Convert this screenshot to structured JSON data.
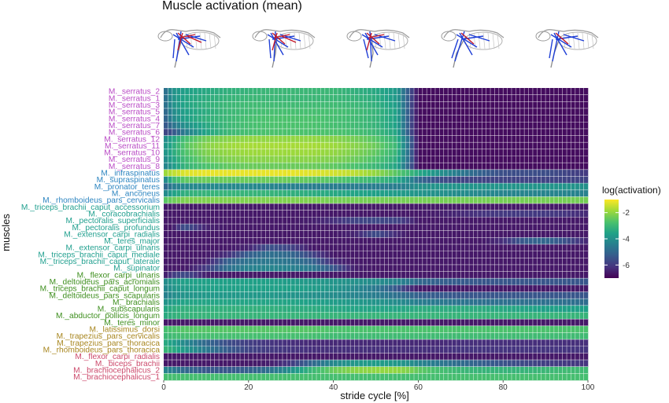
{
  "chart_data": {
    "type": "heatmap",
    "title": "Muscle activation (mean)",
    "xlabel": "stride cycle [%]",
    "ylabel": "muscles",
    "xlim": [
      0,
      100
    ],
    "x_ticks": [
      "0",
      "20",
      "40",
      "60",
      "80",
      "100"
    ],
    "legend": {
      "title": "log(activation)",
      "ticks": [
        "-2",
        "-4",
        "-6"
      ],
      "range": [
        -7,
        -1
      ],
      "placement": "right"
    },
    "group_colors": {
      "serratus": "#b94bc5",
      "blue": "#2e86c1",
      "teal": "#21a08f",
      "green": "#3f8f1f",
      "brown": "#a8861f",
      "pink": "#cc4a6c"
    },
    "muscles": [
      {
        "name": "M._serratus_2",
        "group": "serratus"
      },
      {
        "name": "M._serratus_1",
        "group": "serratus"
      },
      {
        "name": "M._serratus_3",
        "group": "serratus"
      },
      {
        "name": "M._serratus_5",
        "group": "serratus"
      },
      {
        "name": "M._serratus_4",
        "group": "serratus"
      },
      {
        "name": "M._serratus_7",
        "group": "serratus"
      },
      {
        "name": "M._serratus_6",
        "group": "serratus"
      },
      {
        "name": "M._serratus_12",
        "group": "serratus"
      },
      {
        "name": "M._serratus_11",
        "group": "serratus"
      },
      {
        "name": "M._serratus_10",
        "group": "serratus"
      },
      {
        "name": "M._serratus_9",
        "group": "serratus"
      },
      {
        "name": "M._serratus_8",
        "group": "serratus"
      },
      {
        "name": "M._infraspinatus",
        "group": "blue"
      },
      {
        "name": "M._supraspinatus",
        "group": "blue"
      },
      {
        "name": "M._pronator_teres",
        "group": "blue"
      },
      {
        "name": "M._anconeus",
        "group": "blue"
      },
      {
        "name": "M._rhomboideus_pars_cervicalis",
        "group": "blue"
      },
      {
        "name": "M._triceps_brachii_caput_accessorium",
        "group": "teal"
      },
      {
        "name": "M._coracobrachialis",
        "group": "teal"
      },
      {
        "name": "M._pectoralis_superficialis",
        "group": "teal"
      },
      {
        "name": "M._pectoralis_profundus",
        "group": "teal"
      },
      {
        "name": "M._extensor_carpi_radialis",
        "group": "teal"
      },
      {
        "name": "M._teres_major",
        "group": "teal"
      },
      {
        "name": "M._extensor_carpi_ulnaris",
        "group": "teal"
      },
      {
        "name": "M._triceps_brachii_caput_mediale",
        "group": "teal"
      },
      {
        "name": "M._triceps_brachii_caput_laterale",
        "group": "teal"
      },
      {
        "name": "M._supinator",
        "group": "teal"
      },
      {
        "name": "M._flexor_carpi_ulnaris",
        "group": "green"
      },
      {
        "name": "M._deltoideus_pars_acromialis",
        "group": "green"
      },
      {
        "name": "M._triceps_brachii_caput_longum",
        "group": "green"
      },
      {
        "name": "M._deltoideus_pars_scapularis",
        "group": "green"
      },
      {
        "name": "M._brachialis",
        "group": "green"
      },
      {
        "name": "M._subscapularis",
        "group": "green"
      },
      {
        "name": "M._abductor_pollicis_longum",
        "group": "green"
      },
      {
        "name": "M._teres_minor",
        "group": "green"
      },
      {
        "name": "M._latissimus_dorsi",
        "group": "brown"
      },
      {
        "name": "M._trapezius_pars_cervicalis",
        "group": "brown"
      },
      {
        "name": "M._trapezius_pars_thoracica",
        "group": "brown"
      },
      {
        "name": "M._rhomboideus_pars_thoracica",
        "group": "brown"
      },
      {
        "name": "M._flexor_carpi_radialis",
        "group": "pink"
      },
      {
        "name": "M._biceps_brachii",
        "group": "pink"
      },
      {
        "name": "M._brachiocephalicus_2",
        "group": "pink"
      },
      {
        "name": "M._brachiocephalicus_1",
        "group": "pink"
      }
    ],
    "x_breakpoints": [
      0,
      2,
      5,
      10,
      15,
      20,
      25,
      30,
      35,
      40,
      45,
      50,
      55,
      58,
      60,
      65,
      70,
      75,
      80,
      85,
      90,
      95,
      100
    ],
    "activation_profiles": [
      [
        -5.0,
        -4.0,
        -3.6,
        -3.4,
        -3.2,
        -3.1,
        -3.0,
        -3.0,
        -3.0,
        -3.0,
        -3.2,
        -3.4,
        -3.8,
        -5.5,
        -6.8,
        -6.8,
        -6.8,
        -6.8,
        -6.8,
        -6.8,
        -6.8,
        -6.8,
        -6.8
      ],
      [
        -5.0,
        -4.0,
        -3.5,
        -3.3,
        -3.1,
        -3.0,
        -3.0,
        -3.0,
        -3.0,
        -3.0,
        -3.1,
        -3.3,
        -3.8,
        -5.5,
        -6.8,
        -6.8,
        -6.8,
        -6.8,
        -6.8,
        -6.8,
        -6.8,
        -6.8,
        -6.8
      ],
      [
        -5.0,
        -4.0,
        -3.5,
        -3.2,
        -3.0,
        -2.9,
        -2.9,
        -2.9,
        -2.9,
        -2.9,
        -3.0,
        -3.2,
        -3.7,
        -5.5,
        -6.8,
        -6.8,
        -6.8,
        -6.8,
        -6.8,
        -6.8,
        -6.8,
        -6.8,
        -6.8
      ],
      [
        -5.2,
        -4.2,
        -3.6,
        -3.3,
        -3.0,
        -2.9,
        -2.8,
        -2.8,
        -2.8,
        -2.8,
        -2.9,
        -3.1,
        -3.6,
        -5.5,
        -6.8,
        -6.8,
        -6.8,
        -6.8,
        -6.8,
        -6.8,
        -6.8,
        -6.8,
        -6.8
      ],
      [
        -5.3,
        -4.3,
        -3.6,
        -3.2,
        -3.0,
        -2.8,
        -2.7,
        -2.7,
        -2.7,
        -2.8,
        -2.9,
        -3.1,
        -3.6,
        -5.5,
        -6.8,
        -6.8,
        -6.8,
        -6.8,
        -6.8,
        -6.8,
        -6.8,
        -6.8,
        -6.8
      ],
      [
        -5.5,
        -4.8,
        -4.0,
        -3.4,
        -3.0,
        -2.8,
        -2.7,
        -2.7,
        -2.7,
        -2.8,
        -2.9,
        -3.1,
        -3.6,
        -5.5,
        -6.8,
        -6.8,
        -6.8,
        -6.8,
        -6.8,
        -6.8,
        -6.8,
        -6.8,
        -6.8
      ],
      [
        -5.8,
        -5.5,
        -4.5,
        -3.5,
        -3.0,
        -2.8,
        -2.7,
        -2.7,
        -2.7,
        -2.7,
        -2.8,
        -3.0,
        -3.5,
        -5.5,
        -6.8,
        -6.8,
        -6.8,
        -6.8,
        -6.8,
        -6.8,
        -6.8,
        -6.8,
        -6.8
      ],
      [
        -4.2,
        -3.6,
        -2.8,
        -2.3,
        -2.1,
        -2.0,
        -2.0,
        -2.0,
        -2.0,
        -2.1,
        -2.3,
        -2.6,
        -3.2,
        -5.0,
        -6.8,
        -6.8,
        -6.8,
        -6.8,
        -6.8,
        -6.8,
        -6.8,
        -6.8,
        -6.8
      ],
      [
        -4.0,
        -3.4,
        -2.6,
        -2.1,
        -1.9,
        -1.8,
        -1.8,
        -1.8,
        -1.8,
        -1.9,
        -2.1,
        -2.4,
        -3.0,
        -5.0,
        -6.8,
        -6.8,
        -6.8,
        -6.8,
        -6.8,
        -6.8,
        -6.8,
        -6.8,
        -6.8
      ],
      [
        -4.0,
        -3.4,
        -2.7,
        -2.2,
        -2.0,
        -1.9,
        -1.9,
        -1.9,
        -1.9,
        -2.0,
        -2.2,
        -2.5,
        -3.1,
        -5.0,
        -6.8,
        -6.8,
        -6.8,
        -6.8,
        -6.8,
        -6.8,
        -6.8,
        -6.8,
        -6.8
      ],
      [
        -4.2,
        -3.6,
        -2.9,
        -2.4,
        -2.2,
        -2.1,
        -2.1,
        -2.1,
        -2.1,
        -2.2,
        -2.4,
        -2.7,
        -3.3,
        -5.0,
        -6.8,
        -6.8,
        -6.8,
        -6.8,
        -6.8,
        -6.8,
        -6.8,
        -6.8,
        -6.8
      ],
      [
        -4.4,
        -3.8,
        -3.1,
        -2.7,
        -2.5,
        -2.4,
        -2.4,
        -2.4,
        -2.4,
        -2.5,
        -2.7,
        -3.0,
        -3.5,
        -5.2,
        -6.8,
        -6.8,
        -6.8,
        -6.8,
        -6.8,
        -6.8,
        -6.8,
        -6.8,
        -6.8
      ],
      [
        -2.0,
        -1.6,
        -1.3,
        -1.2,
        -1.2,
        -1.2,
        -1.2,
        -1.2,
        -1.3,
        -1.4,
        -1.6,
        -2.0,
        -2.6,
        -3.0,
        -3.4,
        -4.0,
        -4.6,
        -5.2,
        -5.6,
        -5.6,
        -5.6,
        -5.8,
        -6.0
      ],
      [
        -4.5,
        -3.0,
        -2.5,
        -2.4,
        -2.4,
        -2.4,
        -2.4,
        -2.4,
        -2.5,
        -2.6,
        -2.8,
        -3.0,
        -3.4,
        -4.2,
        -5.0,
        -5.6,
        -5.8,
        -5.8,
        -5.8,
        -5.8,
        -5.8,
        -5.8,
        -5.8
      ],
      [
        -5.2,
        -4.5,
        -4.2,
        -4.2,
        -4.2,
        -4.2,
        -4.3,
        -4.4,
        -4.5,
        -4.5,
        -4.5,
        -4.5,
        -4.5,
        -4.3,
        -4.0,
        -3.9,
        -3.9,
        -3.9,
        -3.9,
        -3.9,
        -3.9,
        -3.9,
        -4.0
      ],
      [
        -4.3,
        -3.6,
        -3.2,
        -3.1,
        -3.1,
        -3.1,
        -3.1,
        -3.2,
        -3.3,
        -3.4,
        -3.5,
        -3.6,
        -3.7,
        -3.8,
        -3.9,
        -4.0,
        -4.1,
        -4.2,
        -4.3,
        -4.3,
        -4.3,
        -4.3,
        -4.4
      ],
      [
        -2.6,
        -2.4,
        -2.2,
        -2.2,
        -2.2,
        -2.2,
        -2.2,
        -2.2,
        -2.2,
        -2.3,
        -2.3,
        -2.3,
        -2.3,
        -2.3,
        -2.3,
        -2.3,
        -2.3,
        -2.3,
        -2.3,
        -2.3,
        -2.3,
        -2.3,
        -2.3
      ],
      [
        -6.6,
        -6.6,
        -6.6,
        -6.6,
        -6.6,
        -6.6,
        -6.6,
        -6.6,
        -6.6,
        -6.6,
        -6.6,
        -6.6,
        -6.6,
        -6.6,
        -6.6,
        -6.6,
        -6.6,
        -6.6,
        -6.6,
        -6.6,
        -6.6,
        -6.6,
        -6.6
      ],
      [
        -6.6,
        -6.6,
        -6.6,
        -6.6,
        -6.6,
        -6.6,
        -6.6,
        -6.6,
        -6.6,
        -6.6,
        -6.6,
        -6.6,
        -6.6,
        -6.6,
        -6.6,
        -6.5,
        -6.3,
        -6.1,
        -6.0,
        -6.0,
        -6.0,
        -6.1,
        -6.3
      ],
      [
        -6.6,
        -6.6,
        -6.6,
        -6.6,
        -6.6,
        -6.6,
        -6.6,
        -6.6,
        -6.5,
        -6.2,
        -5.8,
        -5.7,
        -5.8,
        -6.2,
        -6.6,
        -6.6,
        -6.6,
        -6.6,
        -6.6,
        -6.6,
        -6.6,
        -6.6,
        -6.6
      ],
      [
        -6.6,
        -6.6,
        -5.5,
        -6.4,
        -6.6,
        -6.6,
        -6.6,
        -6.6,
        -6.6,
        -6.6,
        -6.6,
        -6.6,
        -6.6,
        -6.6,
        -6.6,
        -6.6,
        -6.6,
        -6.6,
        -6.6,
        -6.6,
        -6.6,
        -6.6,
        -6.6
      ],
      [
        -6.6,
        -6.6,
        -6.6,
        -6.6,
        -6.6,
        -6.6,
        -6.6,
        -6.6,
        -6.6,
        -6.6,
        -6.4,
        -5.6,
        -6.3,
        -6.6,
        -6.6,
        -6.6,
        -6.6,
        -6.6,
        -6.6,
        -6.6,
        -6.6,
        -6.6,
        -6.6
      ],
      [
        -6.6,
        -6.6,
        -6.6,
        -6.6,
        -6.6,
        -6.6,
        -6.6,
        -6.6,
        -6.6,
        -6.6,
        -6.6,
        -6.6,
        -6.6,
        -6.6,
        -6.6,
        -6.6,
        -6.6,
        -6.6,
        -6.2,
        -5.3,
        -5.0,
        -5.6,
        -6.4
      ],
      [
        -6.6,
        -6.6,
        -6.6,
        -6.6,
        -6.6,
        -6.4,
        -5.5,
        -5.8,
        -6.6,
        -6.6,
        -6.6,
        -6.6,
        -6.6,
        -6.6,
        -6.6,
        -6.6,
        -6.6,
        -6.6,
        -6.6,
        -6.6,
        -6.6,
        -6.6,
        -6.6
      ],
      [
        -6.6,
        -6.6,
        -6.6,
        -6.6,
        -6.2,
        -5.2,
        -4.8,
        -5.0,
        -5.8,
        -6.6,
        -6.6,
        -6.6,
        -6.6,
        -6.6,
        -6.6,
        -6.6,
        -6.6,
        -6.6,
        -6.6,
        -6.6,
        -6.6,
        -6.6,
        -6.6
      ],
      [
        -6.6,
        -6.6,
        -6.6,
        -6.5,
        -5.2,
        -4.7,
        -4.6,
        -4.7,
        -5.1,
        -6.3,
        -6.6,
        -6.6,
        -6.6,
        -6.6,
        -6.6,
        -6.6,
        -6.6,
        -6.6,
        -6.6,
        -6.6,
        -6.6,
        -6.6,
        -6.6
      ],
      [
        -6.6,
        -6.6,
        -6.6,
        -6.0,
        -4.8,
        -4.4,
        -4.3,
        -4.4,
        -4.6,
        -5.4,
        -6.5,
        -6.6,
        -6.6,
        -6.6,
        -6.6,
        -6.6,
        -6.6,
        -6.6,
        -6.6,
        -6.6,
        -6.6,
        -6.6,
        -6.6
      ],
      [
        -6.6,
        -6.0,
        -5.6,
        -6.5,
        -6.6,
        -6.6,
        -6.6,
        -6.6,
        -6.6,
        -6.6,
        -6.6,
        -6.6,
        -6.6,
        -6.6,
        -6.6,
        -6.6,
        -6.6,
        -6.6,
        -6.6,
        -6.6,
        -6.6,
        -6.6,
        -6.6
      ],
      [
        -4.2,
        -3.8,
        -3.6,
        -3.6,
        -3.6,
        -3.6,
        -3.6,
        -3.7,
        -3.8,
        -3.9,
        -4.0,
        -4.1,
        -4.3,
        -4.6,
        -5.0,
        -5.2,
        -5.3,
        -5.4,
        -5.4,
        -5.4,
        -5.4,
        -5.4,
        -5.4
      ],
      [
        -4.3,
        -3.9,
        -3.7,
        -3.6,
        -3.6,
        -3.6,
        -3.6,
        -3.6,
        -3.7,
        -3.9,
        -4.2,
        -4.6,
        -5.4,
        -6.2,
        -6.6,
        -6.6,
        -6.6,
        -6.6,
        -6.6,
        -6.6,
        -6.6,
        -6.6,
        -6.6
      ],
      [
        -4.5,
        -4.1,
        -3.9,
        -3.8,
        -3.8,
        -3.8,
        -3.8,
        -3.9,
        -4.0,
        -4.1,
        -4.3,
        -4.5,
        -4.8,
        -5.0,
        -5.2,
        -5.3,
        -5.4,
        -5.4,
        -5.4,
        -5.4,
        -5.4,
        -5.4,
        -5.4
      ],
      [
        -4.0,
        -3.7,
        -3.5,
        -3.5,
        -3.5,
        -3.5,
        -3.5,
        -3.5,
        -3.6,
        -3.7,
        -3.8,
        -3.9,
        -4.1,
        -4.3,
        -4.5,
        -4.6,
        -4.7,
        -4.8,
        -4.8,
        -4.8,
        -4.8,
        -4.8,
        -4.9
      ],
      [
        -3.5,
        -3.3,
        -3.2,
        -3.2,
        -3.2,
        -3.2,
        -3.2,
        -3.3,
        -3.3,
        -3.4,
        -3.5,
        -3.5,
        -3.5,
        -3.4,
        -3.3,
        -3.3,
        -3.3,
        -3.3,
        -3.4,
        -3.5,
        -3.6,
        -3.6,
        -3.6
      ],
      [
        -3.4,
        -3.2,
        -3.1,
        -3.1,
        -3.1,
        -3.1,
        -3.1,
        -3.1,
        -3.1,
        -3.1,
        -3.1,
        -3.1,
        -3.1,
        -3.1,
        -3.1,
        -3.1,
        -3.1,
        -3.1,
        -3.1,
        -3.1,
        -3.1,
        -3.1,
        -3.1
      ],
      [
        -6.6,
        -6.6,
        -6.6,
        -6.6,
        -6.6,
        -6.6,
        -6.6,
        -6.6,
        -6.6,
        -6.6,
        -6.6,
        -6.6,
        -6.6,
        -6.6,
        -6.6,
        -6.6,
        -6.6,
        -6.6,
        -6.6,
        -6.6,
        -6.6,
        -6.6,
        -6.6
      ],
      [
        -2.8,
        -2.7,
        -2.6,
        -2.6,
        -2.6,
        -2.6,
        -2.6,
        -2.6,
        -2.6,
        -2.7,
        -2.7,
        -2.7,
        -2.7,
        -2.7,
        -2.7,
        -2.7,
        -2.7,
        -2.7,
        -2.7,
        -2.7,
        -2.7,
        -2.7,
        -2.7
      ],
      [
        -3.0,
        -2.9,
        -2.8,
        -2.8,
        -2.8,
        -2.8,
        -2.8,
        -2.8,
        -2.8,
        -2.9,
        -2.9,
        -2.9,
        -2.9,
        -2.9,
        -2.9,
        -2.9,
        -2.9,
        -2.9,
        -2.9,
        -2.9,
        -2.9,
        -2.9,
        -2.9
      ],
      [
        -3.3,
        -3.6,
        -4.2,
        -5.0,
        -5.6,
        -5.9,
        -6.1,
        -6.2,
        -6.3,
        -6.3,
        -6.3,
        -6.3,
        -6.3,
        -6.3,
        -6.3,
        -6.3,
        -6.2,
        -6.2,
        -6.2,
        -6.2,
        -6.2,
        -6.2,
        -6.2
      ],
      [
        -3.0,
        -3.3,
        -3.8,
        -4.6,
        -5.3,
        -5.8,
        -6.0,
        -6.1,
        -6.2,
        -6.2,
        -6.2,
        -6.2,
        -6.2,
        -6.2,
        -6.2,
        -6.2,
        -6.1,
        -6.1,
        -6.1,
        -6.1,
        -6.1,
        -6.1,
        -6.1
      ],
      [
        -6.6,
        -6.6,
        -6.6,
        -6.6,
        -6.6,
        -6.6,
        -6.6,
        -6.6,
        -6.6,
        -6.6,
        -6.6,
        -6.6,
        -6.6,
        -6.6,
        -6.6,
        -6.6,
        -6.6,
        -6.6,
        -6.6,
        -6.6,
        -6.6,
        -6.6,
        -6.6
      ],
      [
        -6.6,
        -6.6,
        -6.6,
        -6.6,
        -6.6,
        -6.6,
        -6.5,
        -6.0,
        -5.0,
        -4.2,
        -3.8,
        -3.7,
        -3.8,
        -4.0,
        -4.3,
        -4.6,
        -4.9,
        -5.2,
        -5.5,
        -5.7,
        -5.9,
        -6.0,
        -6.1
      ],
      [
        -4.2,
        -4.5,
        -5.0,
        -5.4,
        -5.4,
        -5.2,
        -4.8,
        -4.0,
        -3.0,
        -2.4,
        -2.1,
        -2.0,
        -2.0,
        -2.2,
        -2.5,
        -2.8,
        -3.0,
        -3.1,
        -3.1,
        -3.1,
        -3.0,
        -2.9,
        -2.9
      ],
      [
        -2.8,
        -2.8,
        -2.8,
        -2.8,
        -2.8,
        -2.8,
        -2.8,
        -2.8,
        -2.8,
        -2.8,
        -2.8,
        -2.8,
        -2.8,
        -2.8,
        -2.8,
        -2.8,
        -2.8,
        -2.8,
        -2.8,
        -2.8,
        -2.8,
        -2.8,
        -2.8
      ]
    ],
    "grid": true
  }
}
